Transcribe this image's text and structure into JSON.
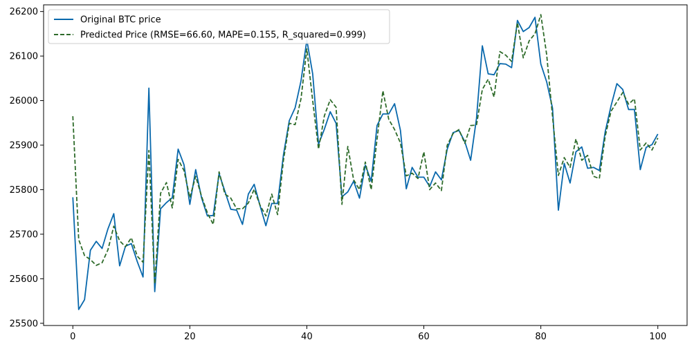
{
  "chart_data": {
    "type": "line",
    "title": "",
    "xlabel": "",
    "ylabel": "",
    "xlim": [
      -5,
      105
    ],
    "ylim": [
      25495,
      26215
    ],
    "xticks": [
      0,
      20,
      40,
      60,
      80,
      100
    ],
    "yticks": [
      25500,
      25600,
      25700,
      25800,
      25900,
      26000,
      26100,
      26200
    ],
    "grid": false,
    "legend_position": "top-left",
    "series": [
      {
        "name": "Original BTC price",
        "color": "#0868ac",
        "style": "solid",
        "values": [
          25783,
          25531,
          25553,
          25664,
          25684,
          25668,
          25712,
          25746,
          25629,
          25673,
          25679,
          25639,
          25604,
          26028,
          25571,
          25757,
          25771,
          25782,
          25891,
          25856,
          25767,
          25845,
          25782,
          25741,
          25742,
          25836,
          25796,
          25756,
          25754,
          25722,
          25790,
          25812,
          25764,
          25719,
          25769,
          25769,
          25878,
          25955,
          25984,
          26044,
          26136,
          26060,
          25902,
          25936,
          25975,
          25949,
          25784,
          25795,
          25819,
          25781,
          25855,
          25819,
          25944,
          25970,
          25970,
          25993,
          25933,
          25802,
          25850,
          25828,
          25828,
          25807,
          25840,
          25822,
          25891,
          25928,
          25933,
          25908,
          25866,
          25960,
          26123,
          26060,
          26058,
          26083,
          26082,
          26074,
          26180,
          26155,
          26164,
          26187,
          26082,
          26042,
          25983,
          25754,
          25859,
          25815,
          25885,
          25896,
          25848,
          25850,
          25843,
          25930,
          25988,
          26038,
          26025,
          25980,
          25980,
          25845,
          25895,
          25901,
          25925
        ]
      },
      {
        "name": "Predicted Price (RMSE=66.60, MAPE=0.155, R_squared=0.999)",
        "color": "#2e6b2a",
        "style": "dashed",
        "values": [
          25965,
          25688,
          25652,
          25643,
          25630,
          25636,
          25665,
          25718,
          25685,
          25672,
          25692,
          25651,
          25637,
          25888,
          25588,
          25792,
          25816,
          25759,
          25868,
          25843,
          25782,
          25830,
          25785,
          25748,
          25722,
          25840,
          25790,
          25781,
          25757,
          25757,
          25770,
          25801,
          25765,
          25741,
          25790,
          25744,
          25866,
          25949,
          25946,
          26004,
          26116,
          26000,
          25891,
          25966,
          26002,
          25985,
          25767,
          25897,
          25822,
          25800,
          25862,
          25800,
          25913,
          26022,
          25958,
          25935,
          25905,
          25831,
          25837,
          25825,
          25885,
          25800,
          25815,
          25798,
          25900,
          25926,
          25935,
          25904,
          25944,
          25945,
          26025,
          26048,
          26008,
          26110,
          26102,
          26088,
          26175,
          26096,
          26134,
          26150,
          26193,
          26103,
          25964,
          25832,
          25872,
          25850,
          25914,
          25866,
          25877,
          25830,
          25825,
          25920,
          25976,
          25997,
          26018,
          25992,
          26004,
          25889,
          25905,
          25889,
          25916
        ]
      }
    ]
  }
}
